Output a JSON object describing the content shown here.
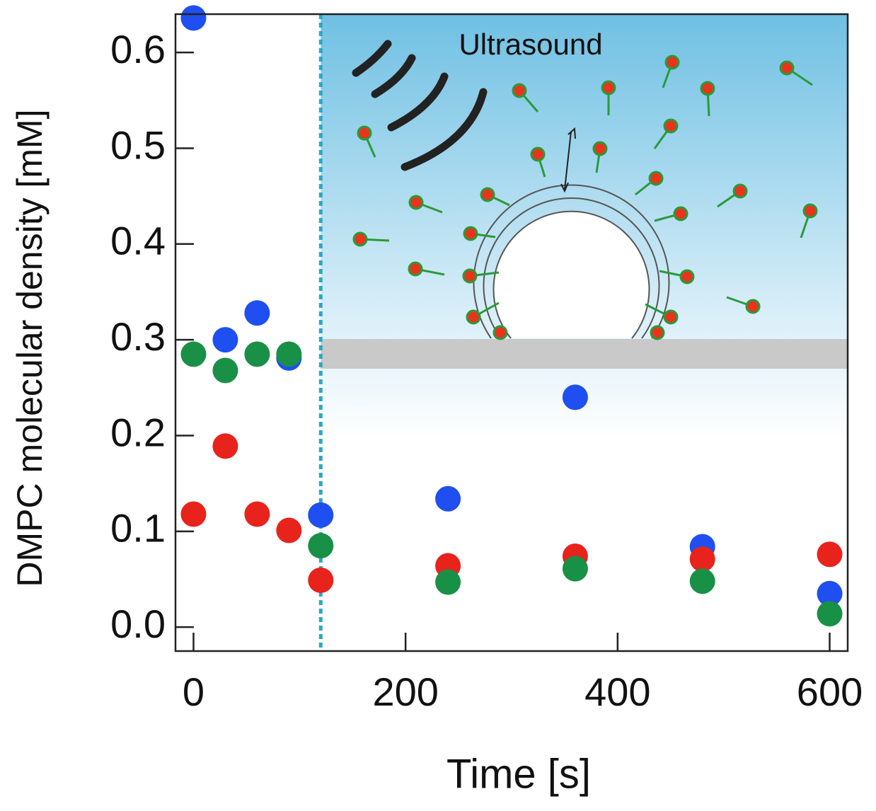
{
  "chart_data": {
    "type": "scatter",
    "x_label": "Time [s]",
    "y_label": "DMPC molecular density [mM]",
    "x": [
      0,
      30,
      60,
      90,
      120,
      240,
      360,
      480,
      600
    ],
    "series": [
      {
        "color": "#1f4ff0",
        "values": [
          0.636,
          0.3,
          0.328,
          0.281,
          0.117,
          0.134,
          0.24,
          0.084,
          0.035
        ]
      },
      {
        "color": "#e8231c",
        "values": [
          0.118,
          0.189,
          0.118,
          0.101,
          0.049,
          0.064,
          0.074,
          0.071,
          0.076
        ]
      },
      {
        "color": "#189045",
        "values": [
          0.285,
          0.268,
          0.285,
          0.285,
          0.085,
          0.047,
          0.061,
          0.048,
          0.014
        ]
      }
    ],
    "xlim": [
      -17,
      617
    ],
    "ylim": [
      -0.025,
      0.64
    ],
    "xticks": [
      0,
      200,
      400,
      600
    ],
    "yticks": [
      {
        "value": 0,
        "label": "0.0"
      },
      0.1,
      0.2,
      0.3,
      0.4,
      0.5,
      0.6
    ],
    "vline": 120,
    "annotation": "Ultrasound"
  }
}
